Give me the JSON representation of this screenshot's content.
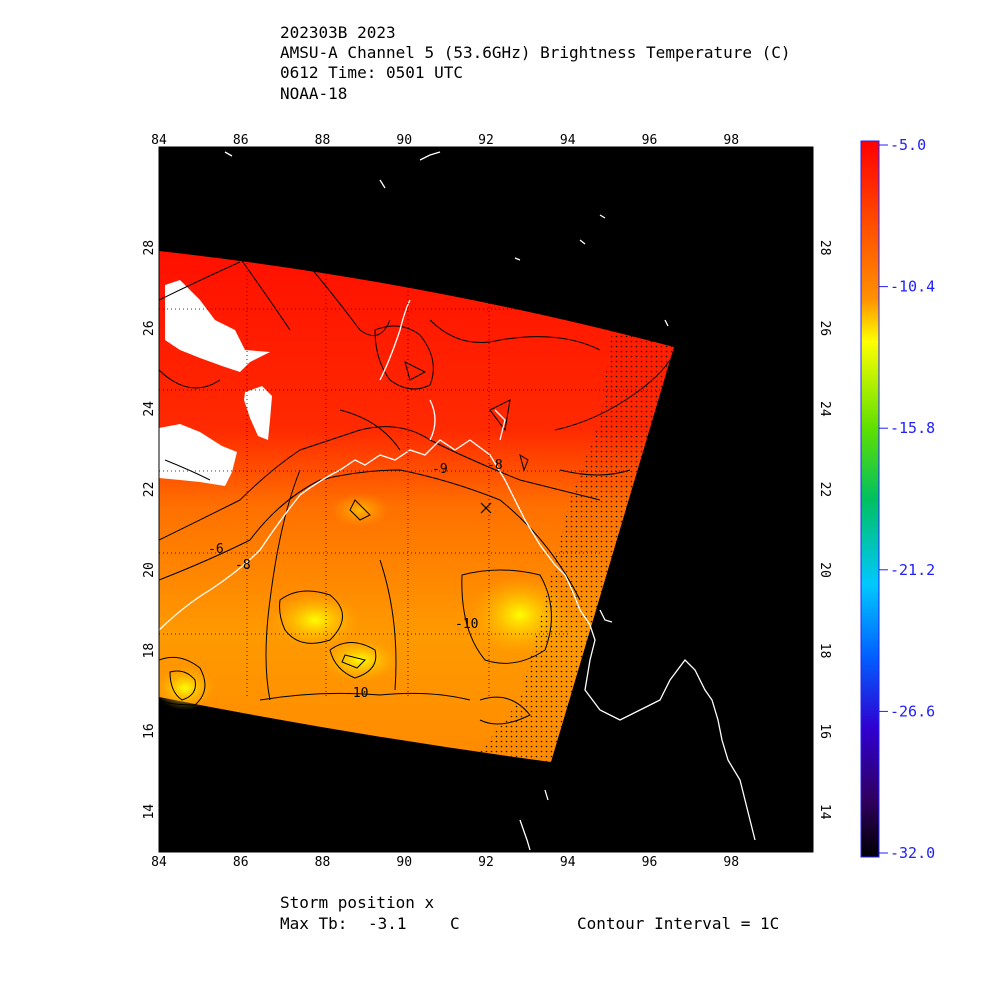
{
  "header": {
    "line1": "202303B 2023",
    "line2": "AMSU-A Channel 5 (53.6GHz) Brightness Temperature (C)",
    "line3": "0612 Time: 0501 UTC",
    "line4": "NOAA-18"
  },
  "axes": {
    "lon_ticks": [
      "84",
      "86",
      "88",
      "90",
      "92",
      "94",
      "96",
      "98"
    ],
    "lat_ticks": [
      "14",
      "16",
      "18",
      "20",
      "22",
      "24",
      "26",
      "28"
    ],
    "lon_range": [
      84,
      100
    ],
    "lat_range": [
      13,
      30.5
    ]
  },
  "colorbar": {
    "labels": [
      "-5.0",
      "-10.4",
      "-15.8",
      "-21.2",
      "-26.6",
      "-32.0"
    ],
    "min": -32.0,
    "max": -5.0,
    "colors": [
      "#ff0000",
      "#ff8000",
      "#ffff00",
      "#00c000",
      "#00c0ff",
      "#0000ff",
      "#300060",
      "#000000"
    ]
  },
  "contour_labels": [
    "-6",
    "-8",
    "-8",
    "-9",
    "-10",
    "-10"
  ],
  "footer": {
    "storm": "Storm position x",
    "maxtb_label": "Max Tb:",
    "maxtb_value": "-3.1",
    "maxtb_unit": "C",
    "interval": "Contour Interval = 1C"
  },
  "colors": {
    "background": "#000000",
    "coast": "#ffffff",
    "warm": "#ff1a00",
    "mid": "#ff7a00",
    "cool": "#ffb800"
  }
}
